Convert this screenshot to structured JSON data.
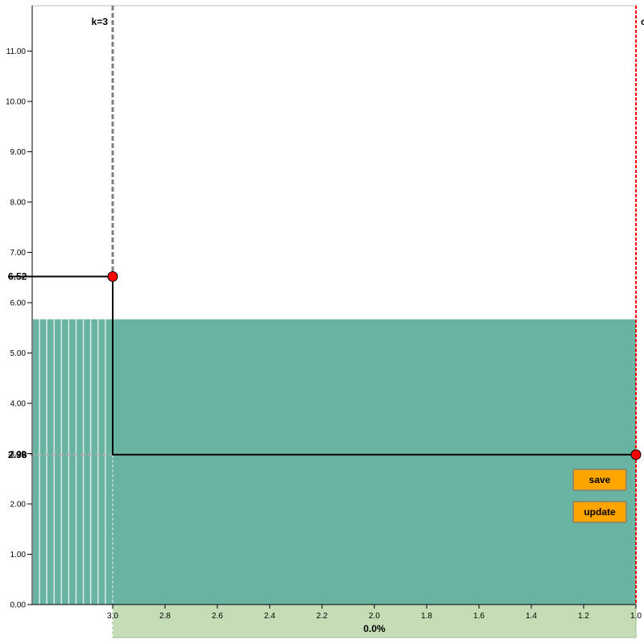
{
  "chart_data": {
    "type": "line",
    "y_axis": {
      "ticks": [
        0,
        1,
        2,
        3,
        4,
        5,
        6,
        7,
        8,
        9,
        10,
        11
      ],
      "tick_labels": [
        "0.00",
        "1.00",
        "2.00",
        "3.00",
        "4.00",
        "5.00",
        "6.00",
        "7.00",
        "8.00",
        "9.00",
        "10.00",
        "11.00"
      ],
      "ylim": [
        0,
        11.95
      ]
    },
    "x_axis": {
      "ticks": [
        3.0,
        2.8,
        2.6,
        2.4,
        2.2,
        2.0,
        1.8,
        1.6,
        1.4,
        1.2,
        1.0
      ],
      "tick_labels": [
        "3.0",
        "2.8",
        "2.6",
        "2.4",
        "2.2",
        "2.0",
        "1.8",
        "1.6",
        "1.4",
        "1.2",
        "1.0"
      ],
      "xlim": [
        3.0,
        1.0
      ],
      "reversed": true,
      "footer_label": "0.0%"
    },
    "filled_region": {
      "y_top": 5.67,
      "color": "#69b3a2"
    },
    "stripes_count": 10,
    "step_series": {
      "points": [
        {
          "x": 3.0,
          "y": 6.52
        },
        {
          "x": 3.0,
          "y": 2.98
        },
        {
          "x": 1.0,
          "y": 2.98
        }
      ],
      "color": "#000000"
    },
    "points": [
      {
        "x": 3.0,
        "y": 6.52,
        "color": "#ff0000"
      },
      {
        "x": 1.0,
        "y": 2.98,
        "color": "#ff0000"
      }
    ],
    "y_markers": [
      {
        "value": 6.52,
        "label": "6.52"
      },
      {
        "value": 2.98,
        "label": "2.98"
      },
      {
        "value": 2.98,
        "label": "2.98"
      }
    ],
    "k_line": {
      "x": 3.0,
      "label": "k=3",
      "color": "#808080"
    },
    "right_line": {
      "x": 1.0,
      "label": "c",
      "color": "#ff0000"
    },
    "footer_band_color": "#c5ddb6"
  },
  "buttons": {
    "save_label": "save",
    "update_label": "update"
  }
}
